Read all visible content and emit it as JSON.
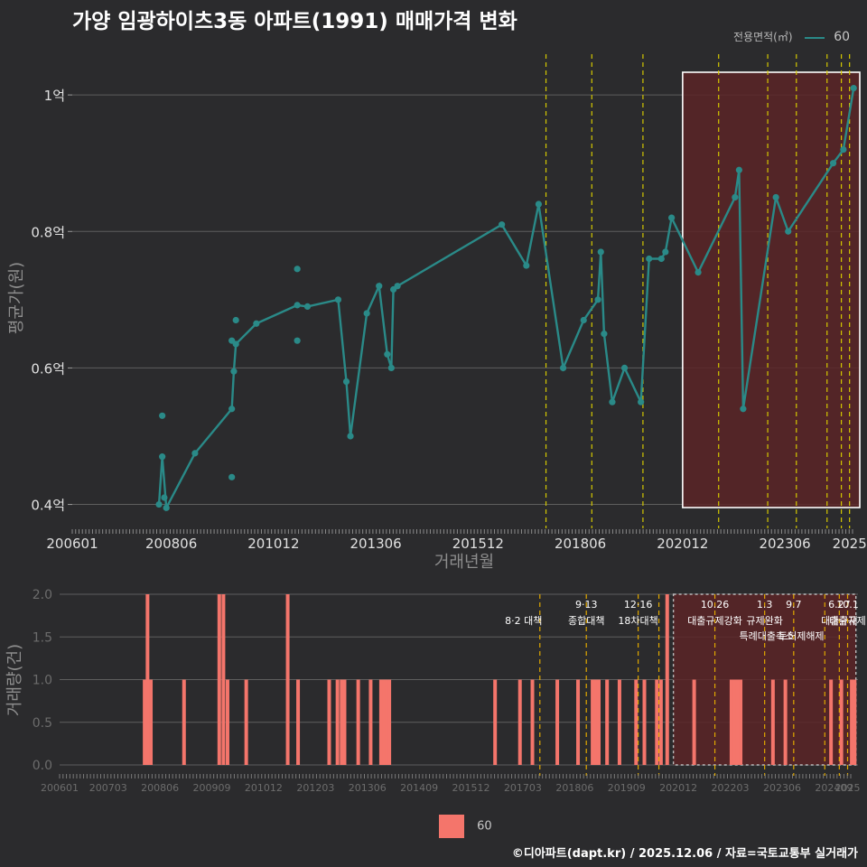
{
  "title": "가양 임광하이츠3동 아파트(1991) 매매가격 변화",
  "legend": {
    "title": "전용면적(㎡)",
    "series_label": "60"
  },
  "footer": "©디아파트(dapt.kr) / 2025.12.06 / 자료=국토교통부 실거래가",
  "colors": {
    "line": "#2a8a88",
    "bar": "#f4756b",
    "policy_line": "#d4c800",
    "policy_line_bottom": "#e0a800",
    "highlight": "#5a2427",
    "background": "#2b2b2d"
  },
  "chart_data": [
    {
      "type": "line",
      "title": "가양 임광하이츠3동 아파트(1991) 매매가격 변화",
      "xlabel": "거래년월",
      "ylabel": "평균가(원)",
      "xlim": [
        2006.0,
        2025.25
      ],
      "ylim": [
        0.365,
        1.065
      ],
      "x_ticks": [
        {
          "label": "200601",
          "x": 2006.0
        },
        {
          "label": "200806",
          "x": 2008.42
        },
        {
          "label": "201012",
          "x": 2010.92
        },
        {
          "label": "201306",
          "x": 2013.42
        },
        {
          "label": "201512",
          "x": 2015.92
        },
        {
          "label": "201806",
          "x": 2018.42
        },
        {
          "label": "202012",
          "x": 2020.92
        },
        {
          "label": "202306",
          "x": 2023.42
        },
        {
          "label": "2025",
          "x": 2025.0
        }
      ],
      "y_ticks": [
        {
          "label": "0.4억",
          "value": 0.4
        },
        {
          "label": "0.6억",
          "value": 0.6
        },
        {
          "label": "0.8억",
          "value": 0.8
        },
        {
          "label": "1억",
          "value": 1.0
        }
      ],
      "series": [
        {
          "name": "60",
          "line": [
            {
              "x": 2008.12,
              "y": 0.4
            },
            {
              "x": 2008.2,
              "y": 0.47
            },
            {
              "x": 2008.3,
              "y": 0.395
            },
            {
              "x": 2009.0,
              "y": 0.475
            },
            {
              "x": 2009.9,
              "y": 0.54
            },
            {
              "x": 2009.95,
              "y": 0.595
            },
            {
              "x": 2010.0,
              "y": 0.635
            },
            {
              "x": 2010.5,
              "y": 0.665
            },
            {
              "x": 2011.5,
              "y": 0.692
            },
            {
              "x": 2011.75,
              "y": 0.69
            },
            {
              "x": 2012.5,
              "y": 0.7
            },
            {
              "x": 2012.7,
              "y": 0.58
            },
            {
              "x": 2012.8,
              "y": 0.5
            },
            {
              "x": 2013.2,
              "y": 0.68
            },
            {
              "x": 2013.5,
              "y": 0.72
            },
            {
              "x": 2013.7,
              "y": 0.62
            },
            {
              "x": 2013.8,
              "y": 0.6
            },
            {
              "x": 2013.85,
              "y": 0.715
            },
            {
              "x": 2013.95,
              "y": 0.72
            },
            {
              "x": 2016.5,
              "y": 0.81
            },
            {
              "x": 2017.1,
              "y": 0.75
            },
            {
              "x": 2017.4,
              "y": 0.84
            },
            {
              "x": 2018.0,
              "y": 0.6
            },
            {
              "x": 2018.5,
              "y": 0.67
            },
            {
              "x": 2018.85,
              "y": 0.7
            },
            {
              "x": 2018.92,
              "y": 0.77
            },
            {
              "x": 2019.0,
              "y": 0.65
            },
            {
              "x": 2019.2,
              "y": 0.55
            },
            {
              "x": 2019.5,
              "y": 0.6
            },
            {
              "x": 2019.9,
              "y": 0.55
            },
            {
              "x": 2020.1,
              "y": 0.76
            },
            {
              "x": 2020.4,
              "y": 0.76
            },
            {
              "x": 2020.5,
              "y": 0.77
            },
            {
              "x": 2020.65,
              "y": 0.82
            },
            {
              "x": 2021.3,
              "y": 0.74
            },
            {
              "x": 2022.2,
              "y": 0.85
            },
            {
              "x": 2022.3,
              "y": 0.89
            },
            {
              "x": 2022.4,
              "y": 0.54
            },
            {
              "x": 2023.2,
              "y": 0.85
            },
            {
              "x": 2023.5,
              "y": 0.8
            },
            {
              "x": 2024.6,
              "y": 0.9
            },
            {
              "x": 2024.85,
              "y": 0.92
            },
            {
              "x": 2025.1,
              "y": 1.01
            }
          ],
          "extra_points": [
            {
              "x": 2008.2,
              "y": 0.53
            },
            {
              "x": 2008.25,
              "y": 0.41
            },
            {
              "x": 2009.9,
              "y": 0.44
            },
            {
              "x": 2009.9,
              "y": 0.64
            },
            {
              "x": 2010.0,
              "y": 0.67
            },
            {
              "x": 2011.5,
              "y": 0.745
            },
            {
              "x": 2011.5,
              "y": 0.64
            }
          ]
        }
      ],
      "policy_lines_x": [
        2017.58,
        2018.7,
        2019.95,
        2021.8,
        2023.0,
        2023.7,
        2024.45,
        2024.8,
        2025.0
      ],
      "highlight": {
        "x0": 2020.92,
        "x1": 2025.25
      }
    },
    {
      "type": "bar",
      "xlabel": "",
      "ylabel": "거래량(건)",
      "xlim": [
        2006.0,
        2025.25
      ],
      "ylim": [
        0,
        2.0
      ],
      "x_ticks": [
        {
          "label": "200601",
          "x": 2006.0
        },
        {
          "label": "200703",
          "x": 2007.17
        },
        {
          "label": "200806",
          "x": 2008.42
        },
        {
          "label": "200909",
          "x": 2009.67
        },
        {
          "label": "201012",
          "x": 2010.92
        },
        {
          "label": "201203",
          "x": 2012.17
        },
        {
          "label": "201306",
          "x": 2013.42
        },
        {
          "label": "201409",
          "x": 2014.67
        },
        {
          "label": "201512",
          "x": 2015.92
        },
        {
          "label": "201703",
          "x": 2017.17
        },
        {
          "label": "201806",
          "x": 2018.42
        },
        {
          "label": "201909",
          "x": 2019.67
        },
        {
          "label": "202012",
          "x": 2020.92
        },
        {
          "label": "202203",
          "x": 2022.17
        },
        {
          "label": "202306",
          "x": 2023.42
        },
        {
          "label": "202409",
          "x": 2024.67
        },
        {
          "label": "2025",
          "x": 2025.0
        }
      ],
      "y_ticks": [
        {
          "label": "0.0",
          "value": 0.0
        },
        {
          "label": "0.5",
          "value": 0.5
        },
        {
          "label": "1.0",
          "value": 1.0
        },
        {
          "label": "1.5",
          "value": 1.5
        },
        {
          "label": "2.0",
          "value": 2.0
        }
      ],
      "bars": [
        {
          "x": 2008.05,
          "value": 1
        },
        {
          "x": 2008.12,
          "value": 2
        },
        {
          "x": 2008.2,
          "value": 1
        },
        {
          "x": 2009.0,
          "value": 1
        },
        {
          "x": 2009.85,
          "value": 2
        },
        {
          "x": 2009.95,
          "value": 2
        },
        {
          "x": 2010.05,
          "value": 1
        },
        {
          "x": 2010.5,
          "value": 1
        },
        {
          "x": 2011.5,
          "value": 2
        },
        {
          "x": 2011.75,
          "value": 1
        },
        {
          "x": 2012.5,
          "value": 1
        },
        {
          "x": 2012.7,
          "value": 1
        },
        {
          "x": 2012.8,
          "value": 1
        },
        {
          "x": 2012.87,
          "value": 1
        },
        {
          "x": 2013.2,
          "value": 1
        },
        {
          "x": 2013.5,
          "value": 1
        },
        {
          "x": 2013.75,
          "value": 1
        },
        {
          "x": 2013.82,
          "value": 1
        },
        {
          "x": 2013.89,
          "value": 1
        },
        {
          "x": 2013.95,
          "value": 1
        },
        {
          "x": 2016.5,
          "value": 1
        },
        {
          "x": 2017.1,
          "value": 1
        },
        {
          "x": 2017.4,
          "value": 1
        },
        {
          "x": 2018.0,
          "value": 1
        },
        {
          "x": 2018.5,
          "value": 1
        },
        {
          "x": 2018.85,
          "value": 1
        },
        {
          "x": 2018.92,
          "value": 1
        },
        {
          "x": 2019.0,
          "value": 1
        },
        {
          "x": 2019.2,
          "value": 1
        },
        {
          "x": 2019.5,
          "value": 1
        },
        {
          "x": 2019.9,
          "value": 1
        },
        {
          "x": 2020.1,
          "value": 1
        },
        {
          "x": 2020.4,
          "value": 1
        },
        {
          "x": 2020.5,
          "value": 1
        },
        {
          "x": 2020.65,
          "value": 2
        },
        {
          "x": 2021.3,
          "value": 1
        },
        {
          "x": 2022.2,
          "value": 1
        },
        {
          "x": 2022.27,
          "value": 1
        },
        {
          "x": 2022.35,
          "value": 1
        },
        {
          "x": 2022.42,
          "value": 1
        },
        {
          "x": 2023.2,
          "value": 1
        },
        {
          "x": 2023.5,
          "value": 1
        },
        {
          "x": 2024.6,
          "value": 1
        },
        {
          "x": 2024.85,
          "value": 1
        },
        {
          "x": 2025.1,
          "value": 1
        },
        {
          "x": 2025.17,
          "value": 1
        }
      ],
      "policy_lines": [
        {
          "x": 2017.58,
          "label_line1": "",
          "label_line2": "8·2 대책"
        },
        {
          "x": 2018.7,
          "label_line1": "9·13",
          "label_line2": "종합대책"
        },
        {
          "x": 2019.95,
          "label_line1": "12·16",
          "label_line2": "18차대책"
        },
        {
          "x": 2020.45,
          "label_line1": "",
          "label_line2": ""
        },
        {
          "x": 2021.8,
          "label_line1": "10.26",
          "label_line2": "대출규제강화"
        },
        {
          "x": 2023.0,
          "label_line1": "1.3",
          "label_line2": "규제완화"
        },
        {
          "x": 2023.7,
          "label_line1": "9.7",
          "label_line2": "특례대출축소"
        },
        {
          "x": 2024.45,
          "label_line1": "",
          "label_line2": "토허제해제"
        },
        {
          "x": 2024.8,
          "label_line1": "6.27",
          "label_line2": "대출규제"
        },
        {
          "x": 2025.0,
          "label_line1": "10.1",
          "label_line2": "대출규제"
        }
      ],
      "highlight": {
        "x0": 2020.8,
        "x1": 2025.2
      }
    }
  ]
}
